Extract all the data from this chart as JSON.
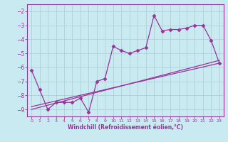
{
  "xlabel": "Windchill (Refroidissement éolien,°C)",
  "bg_color": "#c8eaf0",
  "line_color": "#993399",
  "grid_color": "#b0d0d8",
  "xlim": [
    -0.5,
    23.5
  ],
  "ylim": [
    -9.5,
    -1.5
  ],
  "yticks": [
    -9,
    -8,
    -7,
    -6,
    -5,
    -4,
    -3,
    -2
  ],
  "xticks": [
    0,
    1,
    2,
    3,
    4,
    5,
    6,
    7,
    8,
    9,
    10,
    11,
    12,
    13,
    14,
    15,
    16,
    17,
    18,
    19,
    20,
    21,
    22,
    23
  ],
  "data_x": [
    0,
    1,
    2,
    3,
    4,
    5,
    6,
    7,
    8,
    9,
    10,
    11,
    12,
    13,
    14,
    15,
    16,
    17,
    18,
    19,
    20,
    21,
    22,
    23
  ],
  "data_y": [
    -6.2,
    -7.6,
    -9.0,
    -8.5,
    -8.5,
    -8.5,
    -8.2,
    -9.2,
    -7.0,
    -6.8,
    -4.5,
    -4.8,
    -5.0,
    -4.8,
    -4.6,
    -2.3,
    -3.4,
    -3.3,
    -3.3,
    -3.2,
    -3.0,
    -3.0,
    -4.1,
    -5.7
  ],
  "line1_x": [
    0,
    23
  ],
  "line1_y": [
    -8.8,
    -5.7
  ],
  "line2_x": [
    0,
    23
  ],
  "line2_y": [
    -9.0,
    -5.5
  ]
}
